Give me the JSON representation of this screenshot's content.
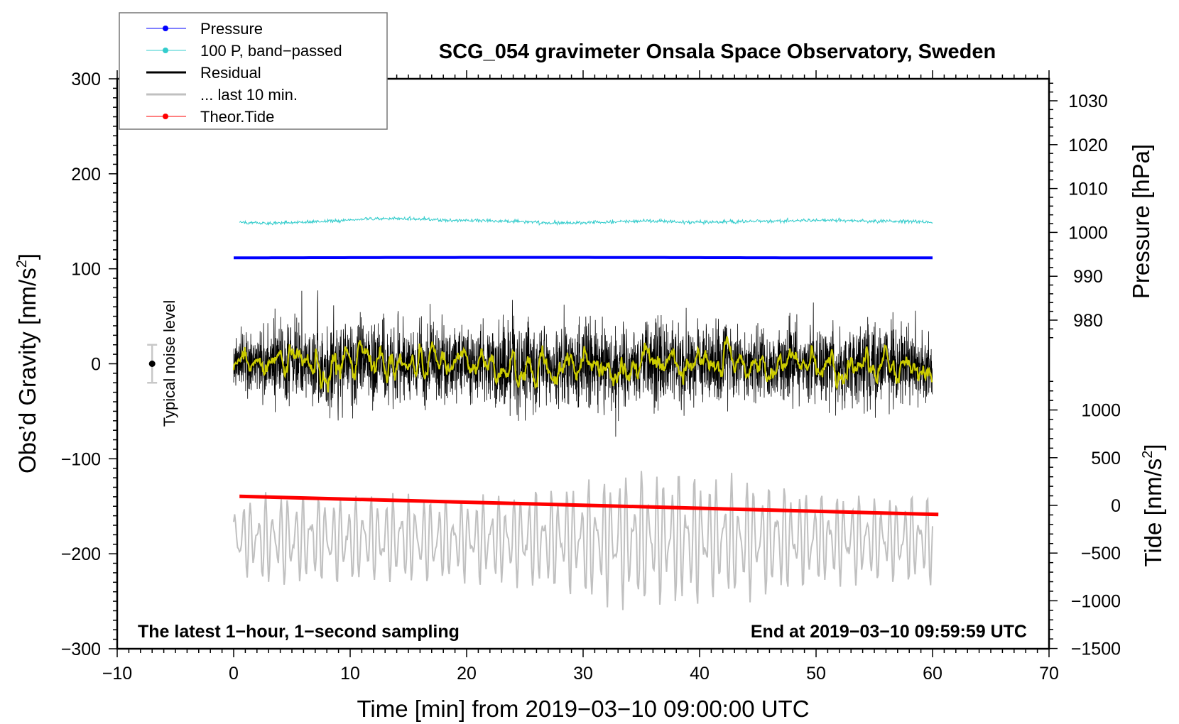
{
  "chart_data": {
    "type": "line",
    "title": "SCG_054 gravimeter Onsala Space Observatory, Sweden",
    "xlabel": "Time [min] from 2019−03−10 09:00:00 UTC",
    "ylabel": "Obs’d Gravity [nm/s²]",
    "ylabel_main": "Obs’d Gravity [nm/s",
    "ylabel_sup": "2",
    "ylabel_end": "]",
    "y2label": "Pressure [hPa]",
    "y3label_main": "Tide [nm/s",
    "y3label_sup": "2",
    "y3label_end": "]",
    "xlim": [
      -10,
      70
    ],
    "ylim": [
      -300,
      300
    ],
    "x_ticks": [
      "−10",
      "0",
      "10",
      "20",
      "30",
      "40",
      "50",
      "60",
      "70"
    ],
    "x_tick_values": [
      -10,
      0,
      10,
      20,
      30,
      40,
      50,
      60,
      70
    ],
    "y_ticks": [
      "300",
      "200",
      "100",
      "0",
      "−100",
      "−200",
      "−300"
    ],
    "y_tick_values": [
      300,
      200,
      100,
      0,
      -100,
      -200,
      -300
    ],
    "pressure_ticks": [
      "1030",
      "1020",
      "1010",
      "1000",
      "990",
      "980"
    ],
    "pressure_tick_values": [
      1030,
      1020,
      1010,
      1000,
      990,
      980
    ],
    "tide_ticks": [
      "1000",
      "500",
      "0",
      "−500",
      "−1000",
      "−1500"
    ],
    "tide_tick_values": [
      1000,
      500,
      0,
      -500,
      -1000,
      -1500
    ],
    "annotation_left": "The latest 1−hour, 1−second sampling",
    "annotation_right": "End at 2019−03−10 09:59:59 UTC",
    "noise_label": "Typical noise level",
    "noise_level": {
      "x": -7,
      "center": 0,
      "half_range": 20
    },
    "legend_position": "top-left",
    "legend": [
      {
        "label": "Pressure",
        "color": "#0000ff",
        "marker": true
      },
      {
        "label": "100 P, band−passed",
        "color": "#33cccc",
        "marker": true
      },
      {
        "label": "Residual",
        "color": "#000000",
        "marker": false
      },
      {
        "label": "... last 10 min.",
        "color": "#c0c0c0",
        "marker": false
      },
      {
        "label": "Theor.Tide",
        "color": "#ff0000",
        "marker": true
      }
    ],
    "series": [
      {
        "name": "Pressure",
        "axis": "pressure_hPa",
        "t_range": [
          0,
          60
        ],
        "values": [
          994.2,
          994.25,
          994.3,
          994.3,
          994.25,
          994.2,
          994.2
        ]
      },
      {
        "name": "100 P, band-passed",
        "axis": "gravity",
        "t_range": [
          0.5,
          60
        ],
        "values": [
          149,
          148,
          149,
          150,
          152,
          153,
          152,
          151,
          151,
          150,
          149,
          148,
          149,
          150,
          150,
          149,
          149,
          150,
          150,
          151,
          151,
          150,
          150,
          149
        ]
      },
      {
        "name": "Residual",
        "axis": "gravity",
        "t_range": [
          0,
          60
        ],
        "amplitude_per_min": [
          35,
          38,
          40,
          42,
          45,
          50,
          55,
          58,
          55,
          52,
          56,
          48,
          45,
          50,
          46,
          44,
          50,
          48,
          46,
          52,
          50,
          48,
          52,
          55,
          60,
          58,
          50,
          55,
          56,
          52,
          48,
          50,
          52,
          48,
          50,
          55,
          60,
          58,
          56,
          54,
          50,
          48,
          46,
          50,
          48,
          46,
          45,
          44,
          46,
          48,
          45,
          44,
          48,
          52,
          55,
          58,
          52,
          46,
          40,
          36
        ]
      },
      {
        "name": "Residual (smoothed)",
        "axis": "gravity",
        "t_range": [
          0,
          60
        ],
        "color": "#cccc00"
      },
      {
        "name": "... last 10 min.",
        "axis": "gravity",
        "t_range": [
          0,
          60
        ],
        "center": -195,
        "amplitude_per_5min": [
          35,
          45,
          40,
          42,
          40,
          45,
          55,
          65,
          60,
          55,
          45,
          40,
          42
        ]
      },
      {
        "name": "Theor.Tide",
        "axis": "tide_nm_s2",
        "t_range": [
          0.5,
          60.5
        ],
        "values": [
          95,
          -95
        ]
      }
    ]
  }
}
